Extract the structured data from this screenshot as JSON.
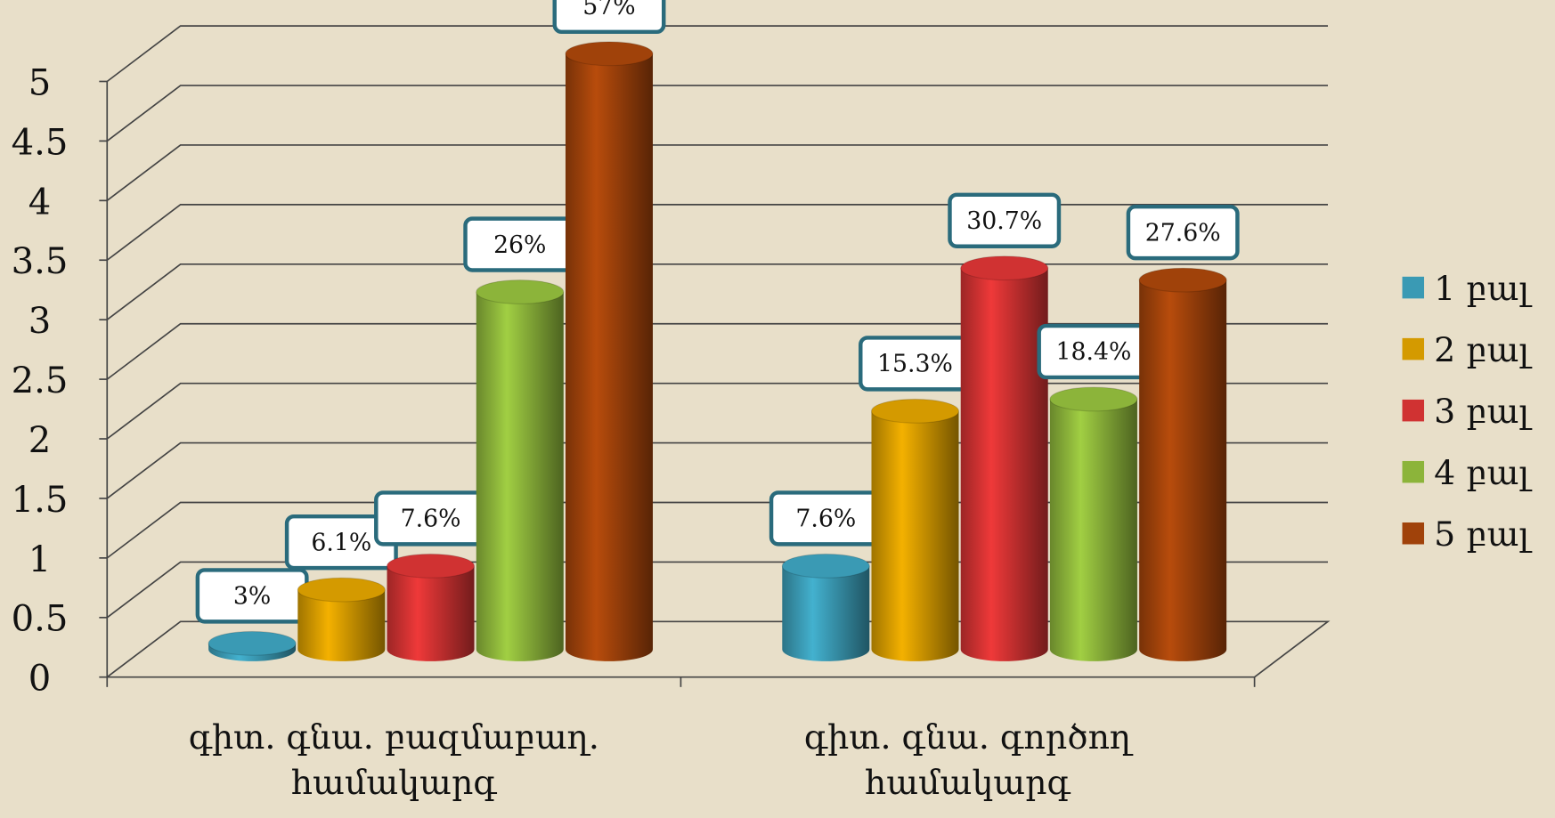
{
  "chart_data": {
    "type": "bar3d",
    "categories": [
      "գիտ. գնա. բազմաբաղ. համակարգ",
      "գիտ. գնա. գործող համակարգ"
    ],
    "series": [
      {
        "name": "1 բալ",
        "color": "#3a9ab4",
        "values": [
          0.05,
          0.7
        ],
        "labels": [
          "3%",
          "7.6%"
        ]
      },
      {
        "name": "2 բալ",
        "color": "#d49a00",
        "values": [
          0.5,
          2.0
        ],
        "labels": [
          "6.1%",
          "15.3%"
        ]
      },
      {
        "name": "3 բալ",
        "color": "#d03232",
        "values": [
          0.7,
          3.2
        ],
        "labels": [
          "7.6%",
          "30.7%"
        ]
      },
      {
        "name": "4 բալ",
        "color": "#8cb43a",
        "values": [
          3.0,
          2.1
        ],
        "labels": [
          "26%",
          "18.4%"
        ]
      },
      {
        "name": "5 բալ",
        "color": "#a0420a",
        "values": [
          5.0,
          3.1
        ],
        "labels": [
          "57%",
          "27.6%"
        ]
      }
    ],
    "ylim": [
      0,
      5
    ],
    "yticks": [
      0,
      0.5,
      1,
      1.5,
      2,
      2.5,
      3,
      3.5,
      4,
      4.5,
      5
    ],
    "grid": true,
    "legend": "right"
  }
}
